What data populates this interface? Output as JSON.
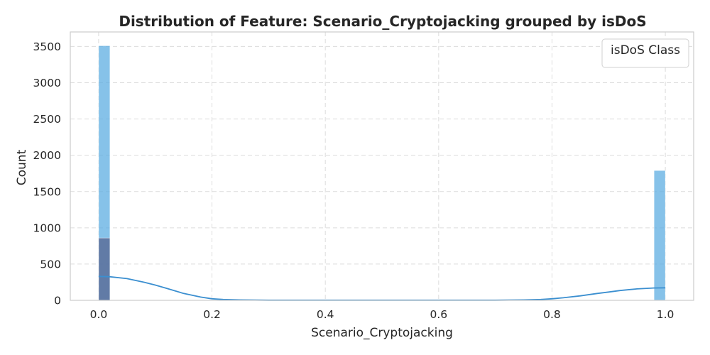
{
  "chart_data": {
    "type": "bar",
    "title": "Distribution of Feature: Scenario_Cryptojacking grouped by isDoS",
    "xlabel": "Scenario_Cryptojacking",
    "ylabel": "Count",
    "xlim": [
      -0.05,
      1.05
    ],
    "ylim": [
      0,
      3700
    ],
    "xticks": [
      0.0,
      0.2,
      0.4,
      0.6,
      0.8,
      1.0
    ],
    "xtick_labels": [
      "0.0",
      "0.2",
      "0.4",
      "0.6",
      "0.8",
      "1.0"
    ],
    "yticks": [
      0,
      500,
      1000,
      1500,
      2000,
      2500,
      3000,
      3500
    ],
    "ytick_labels": [
      "0",
      "500",
      "1000",
      "1500",
      "2000",
      "2500",
      "3000",
      "3500"
    ],
    "grid": true,
    "legend": {
      "title": "isDoS Class",
      "placement": "top-right",
      "entries": []
    },
    "bin_width": 0.02,
    "series": [
      {
        "color": "#5dade2",
        "bins": [
          {
            "x0": 0.0,
            "x1": 0.02,
            "count": 3510
          },
          {
            "x0": 0.98,
            "x1": 1.0,
            "count": 1790
          }
        ]
      },
      {
        "color": "#5b6f9a",
        "bins": [
          {
            "x0": 0.0,
            "x1": 0.02,
            "count": 860
          },
          {
            "x0": 0.98,
            "x1": 1.0,
            "count": 0
          }
        ]
      }
    ],
    "kde": {
      "color": "#3b8fd0",
      "x": [
        0.0,
        0.02,
        0.05,
        0.08,
        0.1,
        0.12,
        0.15,
        0.18,
        0.2,
        0.22,
        0.25,
        0.3,
        0.7,
        0.75,
        0.78,
        0.8,
        0.82,
        0.85,
        0.88,
        0.9,
        0.92,
        0.95,
        0.98,
        1.0
      ],
      "y": [
        330,
        325,
        300,
        250,
        210,
        165,
        95,
        45,
        22,
        12,
        6,
        2,
        2,
        6,
        12,
        22,
        35,
        62,
        95,
        115,
        135,
        158,
        170,
        172
      ]
    }
  }
}
